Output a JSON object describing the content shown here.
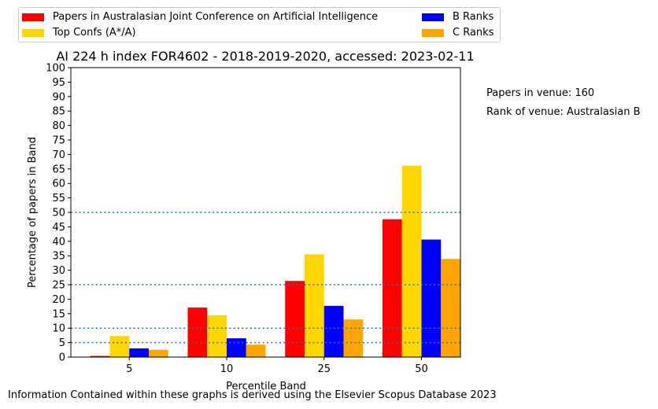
{
  "chart_data": {
    "type": "bar",
    "title": "AI 224 h index FOR4602 - 2018-2019-2020, accessed: 2023-02-11",
    "xlabel": "Percentile Band",
    "ylabel": "Percentage of papers in Band",
    "categories": [
      "5",
      "10",
      "25",
      "50"
    ],
    "ylim": [
      0,
      100
    ],
    "yticks": [
      0,
      5,
      10,
      15,
      20,
      25,
      30,
      35,
      40,
      45,
      50,
      55,
      60,
      65,
      70,
      75,
      80,
      85,
      90,
      95,
      100
    ],
    "reference_lines": [
      5,
      10,
      25,
      50
    ],
    "reference_line_color": "#1f77b4",
    "legend_placement": "top, two columns, above plot",
    "series": [
      {
        "name": "Papers in Australasian Joint Conference on Artificial Intelligence",
        "color": "#ff0000",
        "values": [
          0.4,
          17.1,
          26.3,
          47.6
        ]
      },
      {
        "name": "Top Confs (A*/A)",
        "color": "#ffd700",
        "values": [
          7.3,
          14.4,
          35.5,
          66.1
        ]
      },
      {
        "name": "B Ranks",
        "color": "#0000ff",
        "values": [
          3.0,
          6.5,
          17.7,
          40.6
        ]
      },
      {
        "name": "C Ranks",
        "color": "#ffa500",
        "values": [
          2.5,
          4.3,
          13.0,
          33.9
        ]
      }
    ]
  },
  "annotations": {
    "papers_in_venue": "Papers in venue: 160",
    "rank_of_venue": "Rank of venue: Australasian B"
  },
  "footer": "Information Contained within these graphs is derived using the Elsevier Scopus Database 2023"
}
